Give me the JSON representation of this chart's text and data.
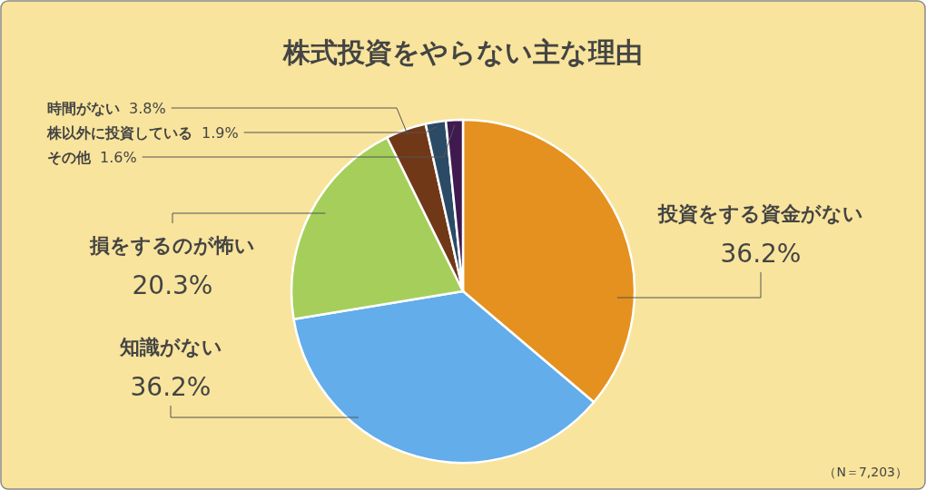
{
  "chart_data": {
    "type": "pie",
    "title": "株式投資をやらない主な理由",
    "categories": [
      "投資をする資金がない",
      "知識がない",
      "損をするのが怖い",
      "時間がない",
      "株以外に投資している",
      "その他"
    ],
    "values": [
      36.2,
      36.2,
      20.3,
      3.8,
      1.9,
      1.6
    ],
    "value_labels": [
      "36.2%",
      "36.2%",
      "20.3%",
      "3.8%",
      "1.9%",
      "1.6%"
    ],
    "colors": [
      "#e5911f",
      "#62adea",
      "#a5cf5a",
      "#713818",
      "#2b4a66",
      "#3f1a4f"
    ],
    "annotations": [
      "（N＝7,203）"
    ]
  }
}
